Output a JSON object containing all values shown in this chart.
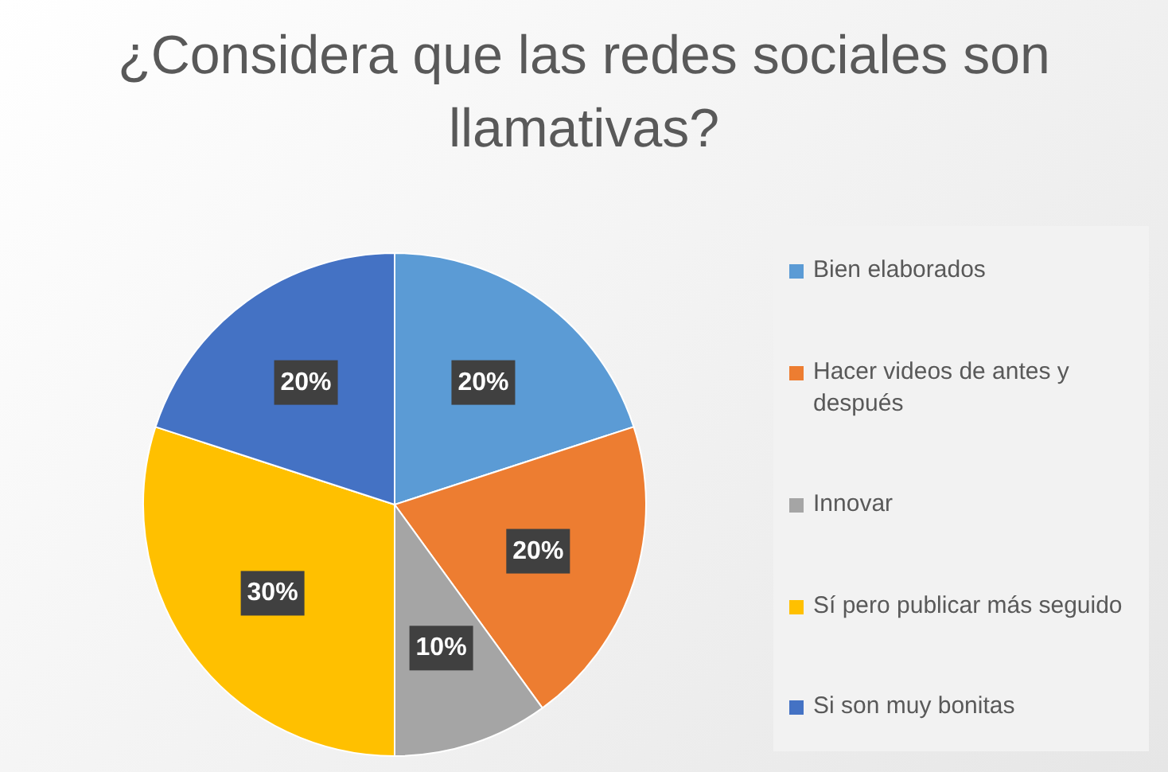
{
  "chart_data": {
    "type": "pie",
    "title": "¿Considera que las redes sociales son llamativas?",
    "categories": [
      "Bien elaborados",
      "Hacer videos de antes y después",
      "Innovar",
      "Sí pero publicar más seguido",
      "Si son muy bonitas"
    ],
    "values": [
      20,
      20,
      10,
      30,
      20
    ],
    "colors": [
      "#5b9bd5",
      "#ed7d31",
      "#a5a5a5",
      "#ffc000",
      "#4472c4"
    ],
    "value_labels": [
      "20%",
      "20%",
      "10%",
      "30%",
      "20%"
    ],
    "legend": "right"
  }
}
